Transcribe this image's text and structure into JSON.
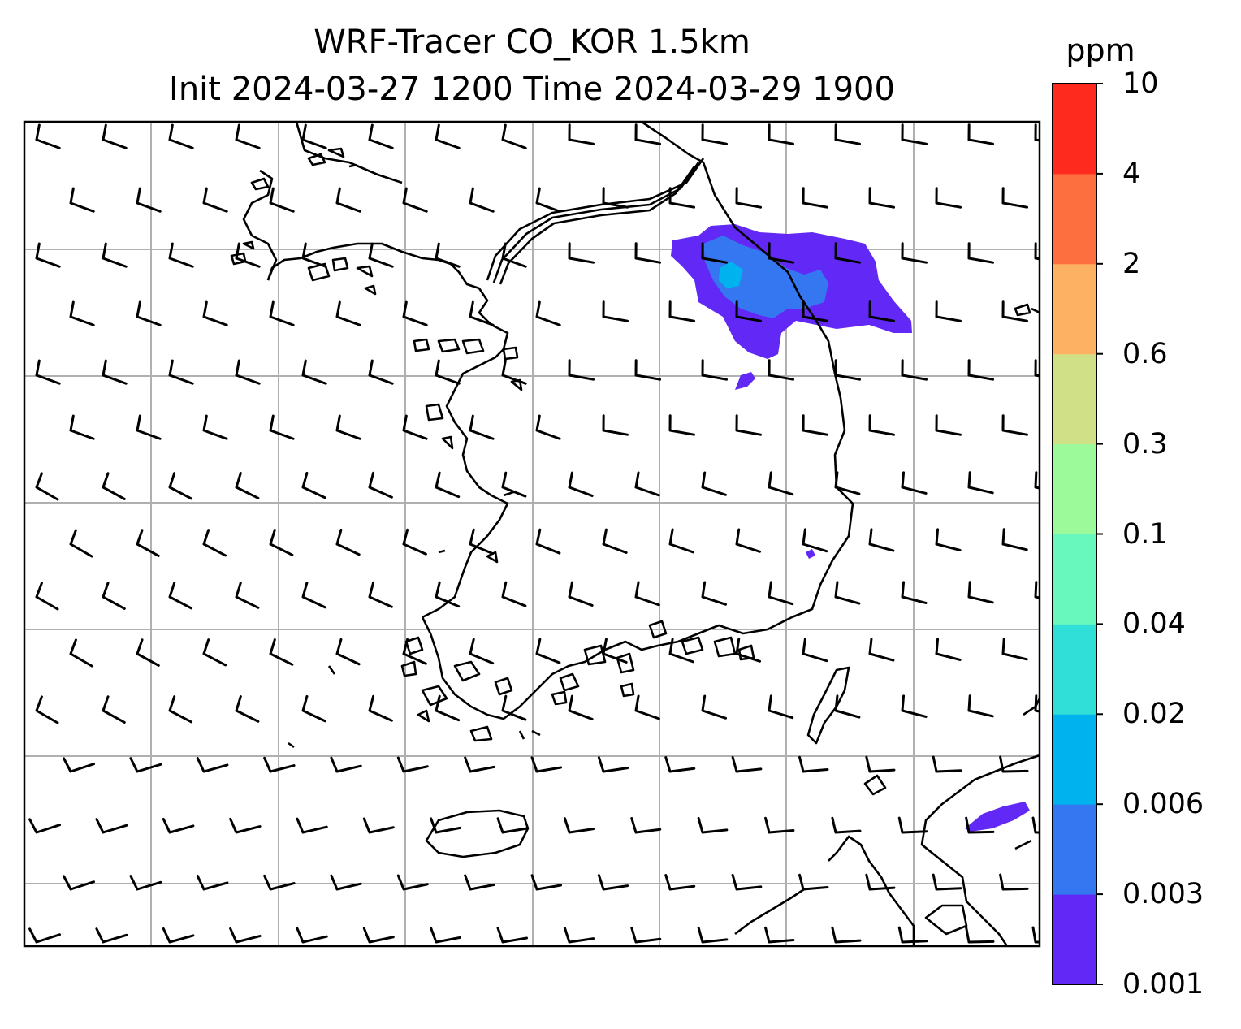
{
  "title": {
    "line1": "WRF-Tracer CO_KOR 1.5km",
    "line2": "Init 2024-03-27 1200 Time 2024-03-29 1900"
  },
  "colorbar": {
    "unit": "ppm",
    "levels": [
      "0.001",
      "0.003",
      "0.006",
      "0.02",
      "0.04",
      "0.1",
      "0.3",
      "0.6",
      "2",
      "4",
      "10"
    ],
    "colors": [
      "#6228f5",
      "#3577f0",
      "#00b3ee",
      "#30dfd8",
      "#68f7bd",
      "#9cfa9a",
      "#d0e086",
      "#fdb163",
      "#fd6f3e",
      "#fd2a1d"
    ]
  },
  "map": {
    "coastline_color": "#000000",
    "gridline_color": "#b0b0b0",
    "wind_barb_color": "#000000",
    "tracer_plumes": [
      {
        "location": "northeast inland",
        "max_level": "0.006-0.02"
      },
      {
        "location": "southeast coast",
        "max_level": "0.001-0.003"
      }
    ]
  }
}
